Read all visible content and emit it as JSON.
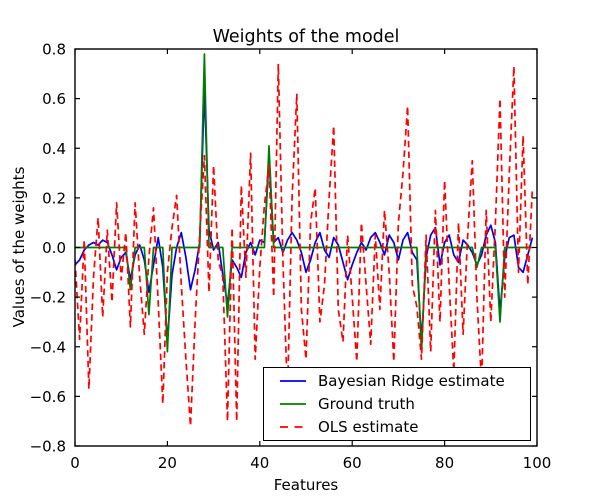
{
  "chart_data": {
    "type": "line",
    "title": "Weights of the model",
    "xlabel": "Features",
    "ylabel": "Values of the weights",
    "xlim": [
      0,
      100
    ],
    "ylim": [
      -0.8,
      0.8
    ],
    "xticks": [
      0,
      20,
      40,
      60,
      80,
      100
    ],
    "xticklabels": [
      "0",
      "20",
      "40",
      "60",
      "80",
      "100"
    ],
    "yticks": [
      0.8,
      0.6,
      0.4,
      0.2,
      0.0,
      -0.2,
      -0.4,
      -0.6,
      -0.8
    ],
    "yticklabels": [
      "0.8",
      "0.6",
      "0.4",
      "0.2",
      "0.0",
      "−0.2",
      "−0.4",
      "−0.6",
      "−0.8"
    ],
    "grid": false,
    "background_color": "#ffffff",
    "axes_color": "#000000",
    "legend": {
      "position": "lower right inside axes",
      "border": true,
      "items": [
        "Bayesian Ridge estimate",
        "Ground truth",
        "OLS estimate"
      ]
    },
    "x": [
      0,
      1,
      2,
      3,
      4,
      5,
      6,
      7,
      8,
      9,
      10,
      11,
      12,
      13,
      14,
      15,
      16,
      17,
      18,
      19,
      20,
      21,
      22,
      23,
      24,
      25,
      26,
      27,
      28,
      29,
      30,
      31,
      32,
      33,
      34,
      35,
      36,
      37,
      38,
      39,
      40,
      41,
      42,
      43,
      44,
      45,
      46,
      47,
      48,
      49,
      50,
      51,
      52,
      53,
      54,
      55,
      56,
      57,
      58,
      59,
      60,
      61,
      62,
      63,
      64,
      65,
      66,
      67,
      68,
      69,
      70,
      71,
      72,
      73,
      74,
      75,
      76,
      77,
      78,
      79,
      80,
      81,
      82,
      83,
      84,
      85,
      86,
      87,
      88,
      89,
      90,
      91,
      92,
      93,
      94,
      95,
      96,
      97,
      98,
      99
    ],
    "series": [
      {
        "name": "Bayesian Ridge estimate",
        "color": "#0000ee",
        "style": "solid",
        "values": [
          -0.07,
          -0.05,
          -0.01,
          0.01,
          0.02,
          0.01,
          0.03,
          0.02,
          -0.03,
          -0.09,
          -0.04,
          -0.02,
          -0.13,
          -0.03,
          0.01,
          -0.05,
          -0.18,
          -0.07,
          0.04,
          -0.08,
          -0.38,
          -0.11,
          0.0,
          0.06,
          -0.04,
          -0.17,
          -0.09,
          0.02,
          0.64,
          0.07,
          -0.01,
          0.02,
          -0.11,
          -0.23,
          -0.05,
          -0.08,
          -0.12,
          -0.02,
          0.02,
          -0.03,
          0.03,
          0.02,
          0.36,
          0.02,
          0.04,
          -0.02,
          0.03,
          0.06,
          0.03,
          -0.02,
          -0.1,
          -0.05,
          0.02,
          0.06,
          -0.01,
          -0.04,
          0.04,
          0.01,
          -0.06,
          -0.13,
          -0.07,
          -0.02,
          0.02,
          -0.01,
          0.04,
          0.06,
          0.02,
          -0.03,
          0.05,
          0.02,
          -0.05,
          0.03,
          0.06,
          -0.02,
          -0.05,
          -0.38,
          -0.04,
          0.05,
          0.08,
          -0.07,
          0.02,
          0.05,
          -0.03,
          -0.06,
          0.03,
          0.01,
          -0.02,
          -0.07,
          -0.03,
          0.05,
          0.09,
          0.02,
          -0.26,
          -0.04,
          0.04,
          0.05,
          -0.08,
          -0.1,
          -0.03,
          0.04
        ]
      },
      {
        "name": "Ground truth",
        "color": "#007d00",
        "style": "solid",
        "values": [
          0,
          0,
          0,
          0,
          0,
          0,
          0,
          0,
          0,
          0,
          0,
          0,
          -0.17,
          0,
          0,
          0,
          -0.27,
          0,
          0,
          0,
          -0.42,
          0,
          0,
          0,
          0,
          0,
          0,
          0,
          0.78,
          0,
          0,
          0,
          0,
          -0.28,
          0,
          0,
          0,
          0,
          0,
          0,
          0,
          0,
          0.41,
          0,
          0,
          0,
          0,
          0,
          0,
          0,
          0,
          0,
          0,
          0,
          0,
          0,
          0,
          0,
          0,
          0,
          0,
          0,
          0,
          0,
          0,
          0,
          0,
          0,
          0,
          0,
          0,
          0,
          0,
          0,
          0,
          -0.42,
          0,
          0,
          0,
          0,
          0,
          0,
          0,
          0,
          0,
          0,
          0,
          -0.08,
          0,
          0,
          0,
          0,
          -0.3,
          0,
          0,
          0,
          0,
          0,
          0,
          0
        ]
      },
      {
        "name": "OLS estimate",
        "color": "#ff0000",
        "style": "dashed",
        "values": [
          -0.05,
          -0.37,
          0.03,
          -0.57,
          -0.12,
          0.12,
          -0.28,
          0.07,
          -0.22,
          0.18,
          -0.13,
          0.06,
          -0.32,
          0.18,
          -0.12,
          -0.35,
          -0.04,
          0.16,
          -0.22,
          -0.63,
          -0.1,
          0.08,
          0.21,
          -0.15,
          -0.45,
          -0.72,
          -0.3,
          0.05,
          0.37,
          -0.18,
          0.33,
          -0.05,
          -0.12,
          -0.7,
          0.08,
          -0.7,
          0.25,
          -0.12,
          0.38,
          -0.45,
          -0.08,
          0.17,
          0.33,
          -0.2,
          0.74,
          -0.05,
          -0.6,
          0.2,
          0.62,
          -0.25,
          -0.45,
          0.1,
          0.24,
          -0.3,
          -0.15,
          0.2,
          0.49,
          -0.25,
          -0.38,
          0.05,
          -0.2,
          -0.46,
          0.1,
          -0.15,
          -0.39,
          0.05,
          -0.25,
          0.15,
          -0.1,
          -0.46,
          0.1,
          0.3,
          0.57,
          -0.15,
          -0.24,
          -0.45,
          0.05,
          -0.42,
          0.15,
          -0.3,
          0.27,
          -0.15,
          -0.5,
          0.1,
          -0.35,
          0.05,
          0.35,
          -0.2,
          -0.55,
          0.15,
          -0.3,
          0.1,
          0.6,
          -0.2,
          0.3,
          0.73,
          -0.1,
          0.45,
          -0.15,
          0.24
        ]
      }
    ]
  }
}
